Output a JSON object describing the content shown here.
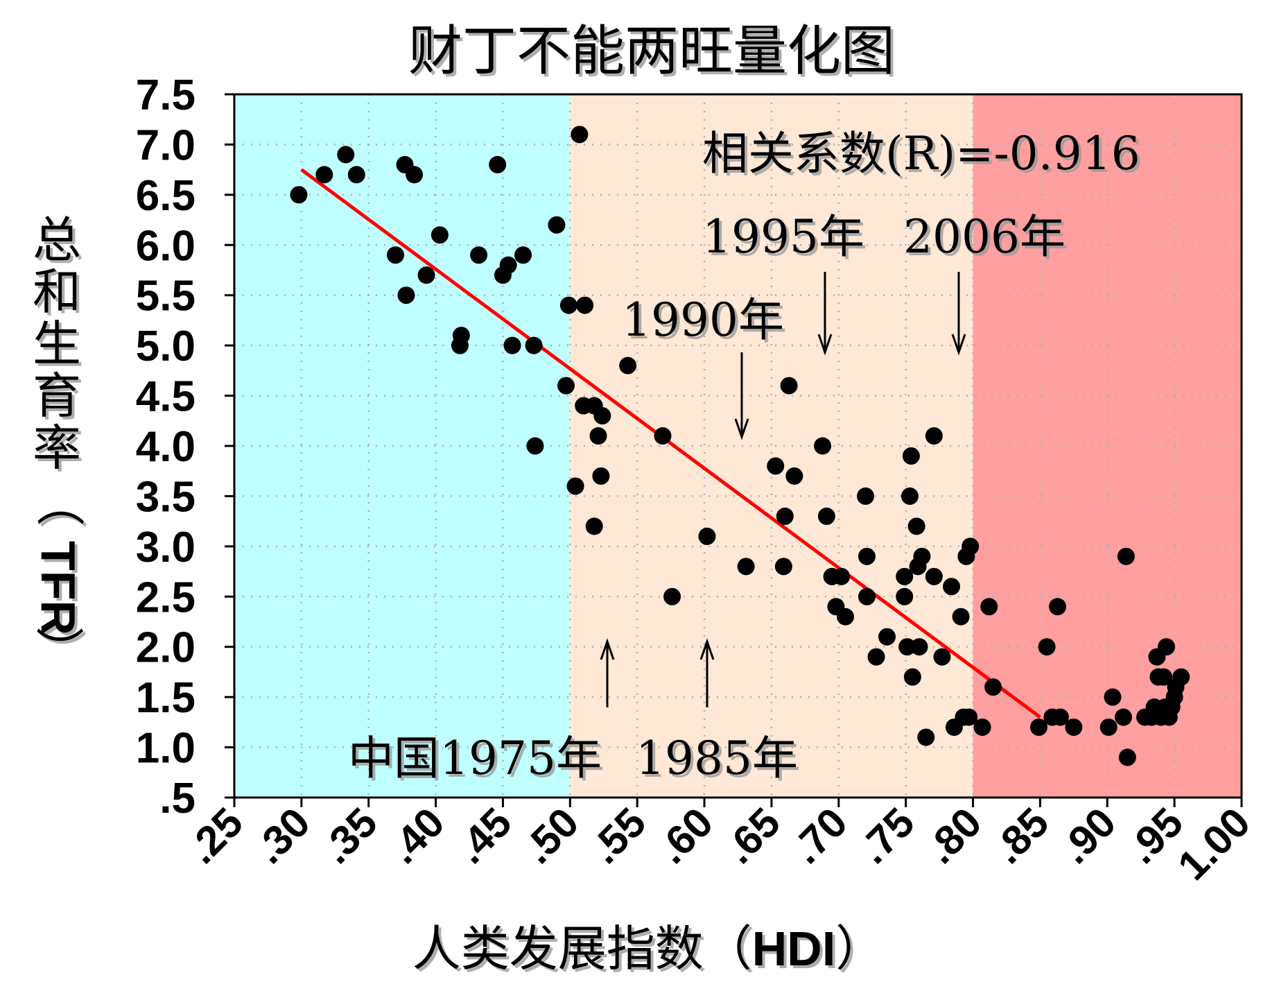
{
  "chart_data": {
    "type": "scatter",
    "title": "财丁不能两旺量化图",
    "xlabel": "人类发展指数（HDI）",
    "ylabel": "总和生育率（TFR）",
    "xlim": [
      0.25,
      1.0
    ],
    "ylim": [
      0.5,
      7.5
    ],
    "x_ticks": [
      ".25",
      ".30",
      ".35",
      ".40",
      ".45",
      ".50",
      ".55",
      ".60",
      ".65",
      ".70",
      ".75",
      ".80",
      ".85",
      ".90",
      ".95",
      "1.00"
    ],
    "x_tick_values": [
      0.25,
      0.3,
      0.35,
      0.4,
      0.45,
      0.5,
      0.55,
      0.6,
      0.65,
      0.7,
      0.75,
      0.8,
      0.85,
      0.9,
      0.95,
      1.0
    ],
    "y_ticks": [
      "7.5",
      "7.0",
      "6.5",
      "6.0",
      "5.5",
      "5.0",
      "4.5",
      "4.0",
      "3.5",
      "3.0",
      "2.5",
      "2.0",
      "1.5",
      "1.0",
      ".5"
    ],
    "y_tick_values": [
      7.5,
      7.0,
      6.5,
      6.0,
      5.5,
      5.0,
      4.5,
      4.0,
      3.5,
      3.0,
      2.5,
      2.0,
      1.5,
      1.0,
      0.5
    ],
    "grid": true,
    "background_bands": [
      {
        "x_from": 0.25,
        "x_to": 0.5,
        "color": "#c0ffff"
      },
      {
        "x_from": 0.5,
        "x_to": 0.8,
        "color": "#ffe8d6"
      },
      {
        "x_from": 0.8,
        "x_to": 1.0,
        "color": "#ff9f9f"
      }
    ],
    "trendline": {
      "x": [
        0.3,
        0.85
      ],
      "y": [
        6.75,
        1.3
      ],
      "color": "#ff0000"
    },
    "points": [
      [
        0.298,
        6.5
      ],
      [
        0.317,
        6.7
      ],
      [
        0.333,
        6.9
      ],
      [
        0.341,
        6.7
      ],
      [
        0.37,
        5.9
      ],
      [
        0.377,
        6.8
      ],
      [
        0.378,
        5.5
      ],
      [
        0.384,
        6.7
      ],
      [
        0.393,
        5.7
      ],
      [
        0.403,
        6.1
      ],
      [
        0.418,
        5.0
      ],
      [
        0.419,
        5.1
      ],
      [
        0.432,
        5.9
      ],
      [
        0.446,
        6.8
      ],
      [
        0.45,
        5.7
      ],
      [
        0.454,
        5.8
      ],
      [
        0.457,
        5.0
      ],
      [
        0.465,
        5.9
      ],
      [
        0.473,
        5.0
      ],
      [
        0.474,
        4.0
      ],
      [
        0.49,
        6.2
      ],
      [
        0.497,
        4.6
      ],
      [
        0.499,
        5.4
      ],
      [
        0.504,
        3.6
      ],
      [
        0.507,
        7.1
      ],
      [
        0.51,
        4.4
      ],
      [
        0.511,
        5.4
      ],
      [
        0.518,
        4.4
      ],
      [
        0.518,
        3.2
      ],
      [
        0.521,
        4.1
      ],
      [
        0.523,
        3.7
      ],
      [
        0.524,
        4.3
      ],
      [
        0.543,
        4.8
      ],
      [
        0.569,
        4.1
      ],
      [
        0.576,
        2.5
      ],
      [
        0.602,
        3.1
      ],
      [
        0.631,
        2.8
      ],
      [
        0.653,
        3.8
      ],
      [
        0.659,
        2.8
      ],
      [
        0.66,
        3.3
      ],
      [
        0.663,
        4.6
      ],
      [
        0.667,
        3.7
      ],
      [
        0.688,
        4.0
      ],
      [
        0.691,
        3.3
      ],
      [
        0.695,
        2.7
      ],
      [
        0.698,
        2.4
      ],
      [
        0.702,
        2.7
      ],
      [
        0.705,
        2.3
      ],
      [
        0.72,
        3.5
      ],
      [
        0.721,
        2.9
      ],
      [
        0.721,
        2.5
      ],
      [
        0.728,
        1.9
      ],
      [
        0.736,
        2.1
      ],
      [
        0.749,
        2.7
      ],
      [
        0.749,
        2.5
      ],
      [
        0.751,
        2.0
      ],
      [
        0.753,
        3.5
      ],
      [
        0.754,
        3.9
      ],
      [
        0.755,
        1.7
      ],
      [
        0.758,
        3.2
      ],
      [
        0.759,
        2.8
      ],
      [
        0.76,
        2.0
      ],
      [
        0.762,
        2.9
      ],
      [
        0.765,
        1.1
      ],
      [
        0.771,
        4.1
      ],
      [
        0.771,
        2.7
      ],
      [
        0.777,
        1.9
      ],
      [
        0.784,
        2.6
      ],
      [
        0.786,
        1.2
      ],
      [
        0.791,
        2.3
      ],
      [
        0.793,
        1.3
      ],
      [
        0.795,
        2.9
      ],
      [
        0.797,
        1.3
      ],
      [
        0.798,
        3.0
      ],
      [
        0.807,
        1.2
      ],
      [
        0.812,
        2.4
      ],
      [
        0.815,
        1.6
      ],
      [
        0.849,
        1.2
      ],
      [
        0.855,
        2.0
      ],
      [
        0.859,
        1.3
      ],
      [
        0.863,
        2.4
      ],
      [
        0.865,
        1.3
      ],
      [
        0.875,
        1.2
      ],
      [
        0.901,
        1.2
      ],
      [
        0.904,
        1.5
      ],
      [
        0.912,
        1.3
      ],
      [
        0.914,
        2.9
      ],
      [
        0.915,
        0.9
      ],
      [
        0.928,
        1.3
      ],
      [
        0.933,
        1.3
      ],
      [
        0.935,
        1.4
      ],
      [
        0.937,
        1.9
      ],
      [
        0.938,
        1.7
      ],
      [
        0.94,
        1.3
      ],
      [
        0.942,
        1.7
      ],
      [
        0.943,
        1.4
      ],
      [
        0.944,
        2.0
      ],
      [
        0.946,
        1.3
      ],
      [
        0.948,
        1.4
      ],
      [
        0.95,
        1.5
      ],
      [
        0.951,
        1.6
      ],
      [
        0.955,
        1.7
      ]
    ],
    "annotations": {
      "correlation": "相关系数(R)=-0.916",
      "y1995": "1995年",
      "y2006": "2006年",
      "y1990": "1990年",
      "china1975": "中国1975年",
      "y1985": "1985年"
    }
  }
}
